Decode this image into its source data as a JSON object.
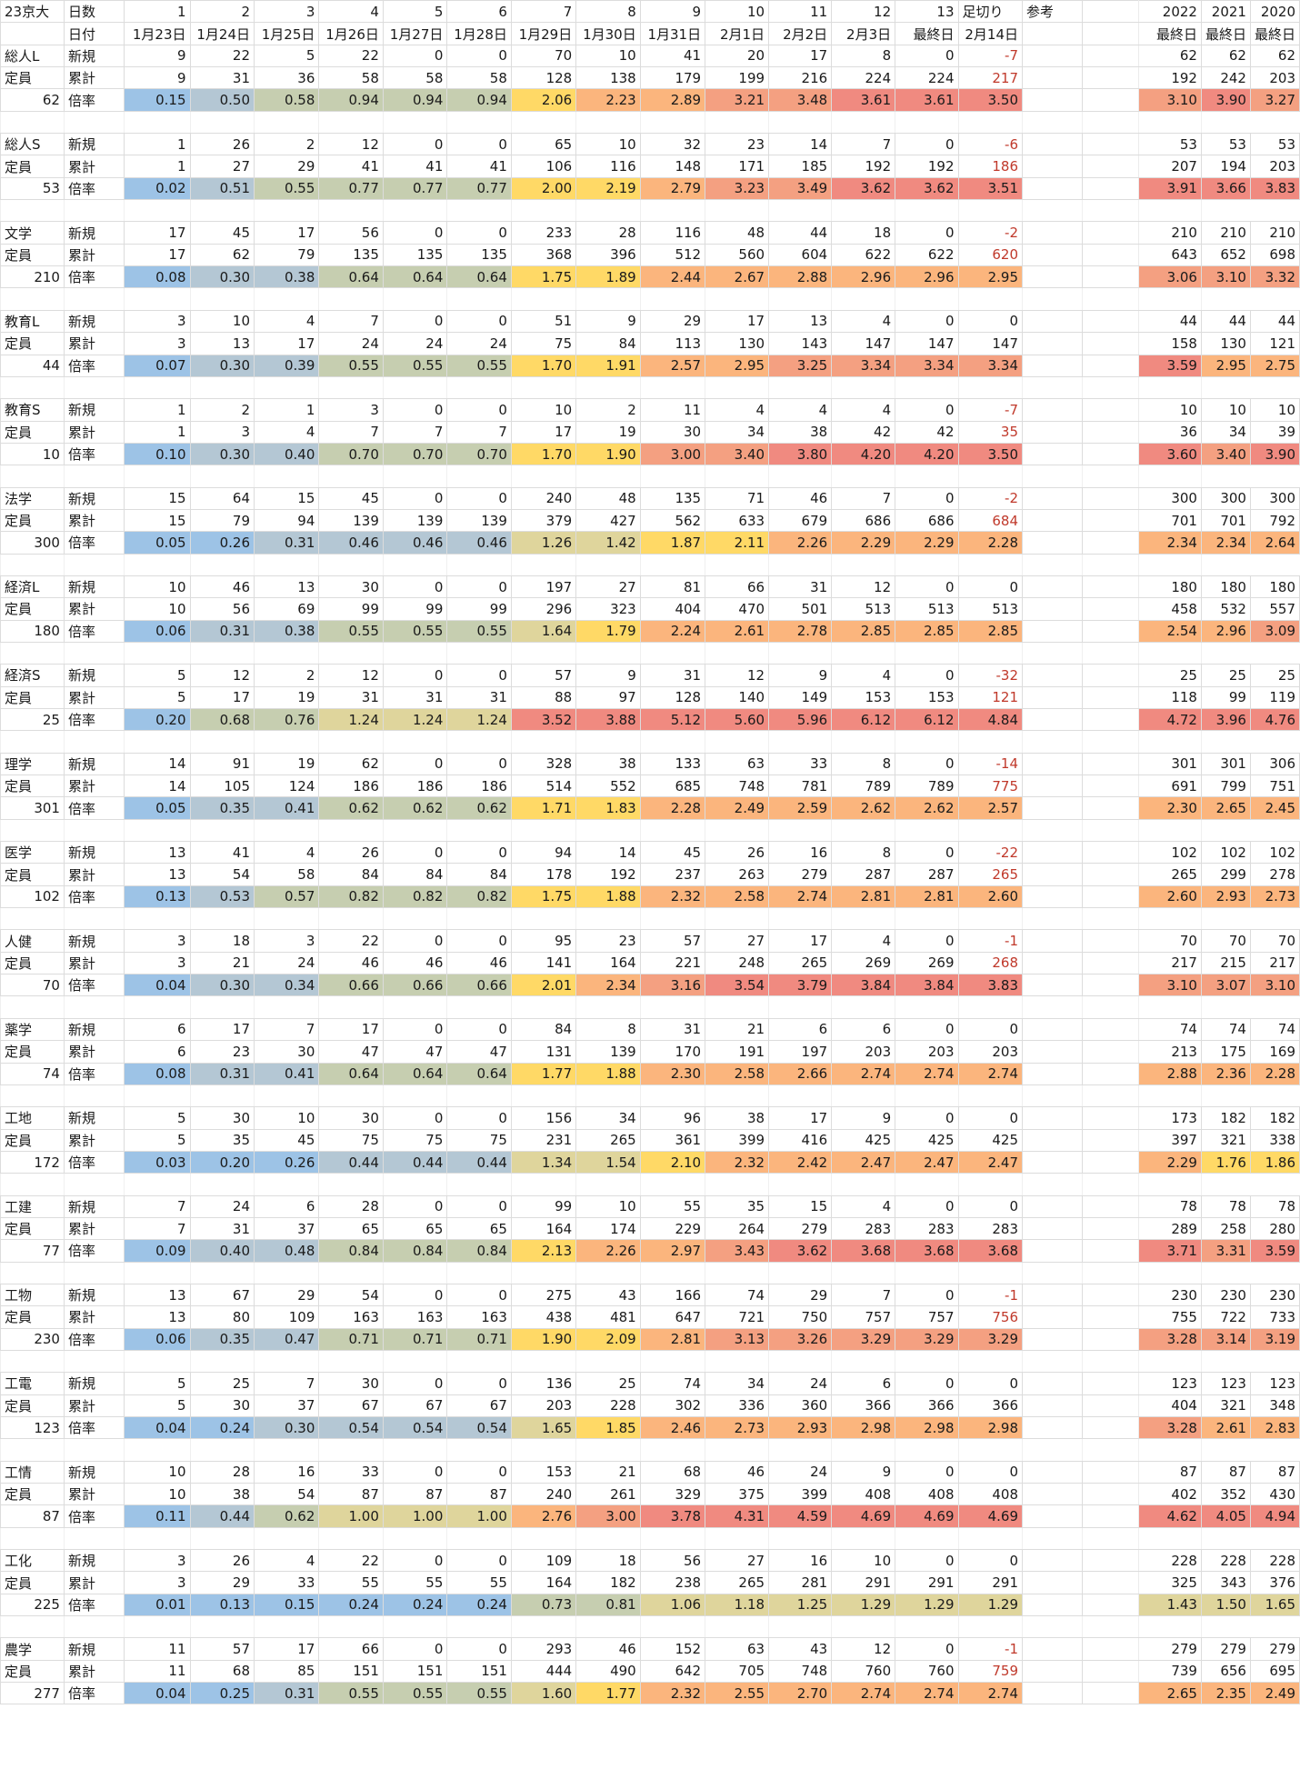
{
  "header": {
    "row1": {
      "title": "23京大",
      "label": "日数",
      "days": [
        "1",
        "2",
        "3",
        "4",
        "5",
        "6",
        "7",
        "8",
        "9",
        "10",
        "11",
        "12",
        "13"
      ],
      "cutoff": "足切り",
      "ref": "参考",
      "years": [
        "2022",
        "2021",
        "2020"
      ]
    },
    "row2": {
      "label": "日付",
      "dates": [
        "1月23日",
        "1月24日",
        "1月25日",
        "1月26日",
        "1月27日",
        "1月28日",
        "1月29日",
        "1月30日",
        "1月31日",
        "2月1日",
        "2月2日",
        "2月3日",
        "最終日"
      ],
      "cutoff_date": "2月14日",
      "years": [
        "最終日",
        "最終日",
        "最終日"
      ]
    }
  },
  "labels": {
    "new": "新規",
    "cumulative": "累計",
    "ratio": "倍率",
    "capacity": "定員"
  },
  "colors": {
    "blue": "#9dc3e6",
    "gray_blue": "#b4c7d4",
    "green_gray": "#c6ceb0",
    "beige": "#dfd59c",
    "yellow": "#ffd966",
    "orange": "#fbb57d",
    "salmon": "#f4a081",
    "red": "#f08a80",
    "negative_text": "#c0392b"
  },
  "groups": [
    {
      "name": "総人L",
      "capacity": "62",
      "new": [
        "9",
        "22",
        "5",
        "22",
        "0",
        "0",
        "70",
        "10",
        "41",
        "20",
        "17",
        "8",
        "0",
        "-7"
      ],
      "cum": [
        "9",
        "31",
        "36",
        "58",
        "58",
        "58",
        "128",
        "138",
        "179",
        "199",
        "216",
        "224",
        "224",
        "217"
      ],
      "ratio": [
        "0.15",
        "0.50",
        "0.58",
        "0.94",
        "0.94",
        "0.94",
        "2.06",
        "2.23",
        "2.89",
        "3.21",
        "3.48",
        "3.61",
        "3.61",
        "3.50"
      ],
      "ref_new": [
        "62",
        "62",
        "62"
      ],
      "ref_cum": [
        "192",
        "242",
        "203"
      ],
      "ref_ratio": [
        "3.10",
        "3.90",
        "3.27"
      ]
    },
    {
      "name": "総人S",
      "capacity": "53",
      "new": [
        "1",
        "26",
        "2",
        "12",
        "0",
        "0",
        "65",
        "10",
        "32",
        "23",
        "14",
        "7",
        "0",
        "-6"
      ],
      "cum": [
        "1",
        "27",
        "29",
        "41",
        "41",
        "41",
        "106",
        "116",
        "148",
        "171",
        "185",
        "192",
        "192",
        "186"
      ],
      "ratio": [
        "0.02",
        "0.51",
        "0.55",
        "0.77",
        "0.77",
        "0.77",
        "2.00",
        "2.19",
        "2.79",
        "3.23",
        "3.49",
        "3.62",
        "3.62",
        "3.51"
      ],
      "ref_new": [
        "53",
        "53",
        "53"
      ],
      "ref_cum": [
        "207",
        "194",
        "203"
      ],
      "ref_ratio": [
        "3.91",
        "3.66",
        "3.83"
      ]
    },
    {
      "name": "文学",
      "capacity": "210",
      "new": [
        "17",
        "45",
        "17",
        "56",
        "0",
        "0",
        "233",
        "28",
        "116",
        "48",
        "44",
        "18",
        "0",
        "-2"
      ],
      "cum": [
        "17",
        "62",
        "79",
        "135",
        "135",
        "135",
        "368",
        "396",
        "512",
        "560",
        "604",
        "622",
        "622",
        "620"
      ],
      "ratio": [
        "0.08",
        "0.30",
        "0.38",
        "0.64",
        "0.64",
        "0.64",
        "1.75",
        "1.89",
        "2.44",
        "2.67",
        "2.88",
        "2.96",
        "2.96",
        "2.95"
      ],
      "ref_new": [
        "210",
        "210",
        "210"
      ],
      "ref_cum": [
        "643",
        "652",
        "698"
      ],
      "ref_ratio": [
        "3.06",
        "3.10",
        "3.32"
      ]
    },
    {
      "name": "教育L",
      "capacity": "44",
      "new": [
        "3",
        "10",
        "4",
        "7",
        "0",
        "0",
        "51",
        "9",
        "29",
        "17",
        "13",
        "4",
        "0",
        "0"
      ],
      "cum": [
        "3",
        "13",
        "17",
        "24",
        "24",
        "24",
        "75",
        "84",
        "113",
        "130",
        "143",
        "147",
        "147",
        "147"
      ],
      "ratio": [
        "0.07",
        "0.30",
        "0.39",
        "0.55",
        "0.55",
        "0.55",
        "1.70",
        "1.91",
        "2.57",
        "2.95",
        "3.25",
        "3.34",
        "3.34",
        "3.34"
      ],
      "ref_new": [
        "44",
        "44",
        "44"
      ],
      "ref_cum": [
        "158",
        "130",
        "121"
      ],
      "ref_ratio": [
        "3.59",
        "2.95",
        "2.75"
      ]
    },
    {
      "name": "教育S",
      "capacity": "10",
      "new": [
        "1",
        "2",
        "1",
        "3",
        "0",
        "0",
        "10",
        "2",
        "11",
        "4",
        "4",
        "4",
        "0",
        "-7"
      ],
      "cum": [
        "1",
        "3",
        "4",
        "7",
        "7",
        "7",
        "17",
        "19",
        "30",
        "34",
        "38",
        "42",
        "42",
        "35"
      ],
      "ratio": [
        "0.10",
        "0.30",
        "0.40",
        "0.70",
        "0.70",
        "0.70",
        "1.70",
        "1.90",
        "3.00",
        "3.40",
        "3.80",
        "4.20",
        "4.20",
        "3.50"
      ],
      "ref_new": [
        "10",
        "10",
        "10"
      ],
      "ref_cum": [
        "36",
        "34",
        "39"
      ],
      "ref_ratio": [
        "3.60",
        "3.40",
        "3.90"
      ]
    },
    {
      "name": "法学",
      "capacity": "300",
      "new": [
        "15",
        "64",
        "15",
        "45",
        "0",
        "0",
        "240",
        "48",
        "135",
        "71",
        "46",
        "7",
        "0",
        "-2"
      ],
      "cum": [
        "15",
        "79",
        "94",
        "139",
        "139",
        "139",
        "379",
        "427",
        "562",
        "633",
        "679",
        "686",
        "686",
        "684"
      ],
      "ratio": [
        "0.05",
        "0.26",
        "0.31",
        "0.46",
        "0.46",
        "0.46",
        "1.26",
        "1.42",
        "1.87",
        "2.11",
        "2.26",
        "2.29",
        "2.29",
        "2.28"
      ],
      "ref_new": [
        "300",
        "300",
        "300"
      ],
      "ref_cum": [
        "701",
        "701",
        "792"
      ],
      "ref_ratio": [
        "2.34",
        "2.34",
        "2.64"
      ]
    },
    {
      "name": "経済L",
      "capacity": "180",
      "new": [
        "10",
        "46",
        "13",
        "30",
        "0",
        "0",
        "197",
        "27",
        "81",
        "66",
        "31",
        "12",
        "0",
        "0"
      ],
      "cum": [
        "10",
        "56",
        "69",
        "99",
        "99",
        "99",
        "296",
        "323",
        "404",
        "470",
        "501",
        "513",
        "513",
        "513"
      ],
      "ratio": [
        "0.06",
        "0.31",
        "0.38",
        "0.55",
        "0.55",
        "0.55",
        "1.64",
        "1.79",
        "2.24",
        "2.61",
        "2.78",
        "2.85",
        "2.85",
        "2.85"
      ],
      "ref_new": [
        "180",
        "180",
        "180"
      ],
      "ref_cum": [
        "458",
        "532",
        "557"
      ],
      "ref_ratio": [
        "2.54",
        "2.96",
        "3.09"
      ]
    },
    {
      "name": "経済S",
      "capacity": "25",
      "new": [
        "5",
        "12",
        "2",
        "12",
        "0",
        "0",
        "57",
        "9",
        "31",
        "12",
        "9",
        "4",
        "0",
        "-32"
      ],
      "cum": [
        "5",
        "17",
        "19",
        "31",
        "31",
        "31",
        "88",
        "97",
        "128",
        "140",
        "149",
        "153",
        "153",
        "121"
      ],
      "ratio": [
        "0.20",
        "0.68",
        "0.76",
        "1.24",
        "1.24",
        "1.24",
        "3.52",
        "3.88",
        "5.12",
        "5.60",
        "5.96",
        "6.12",
        "6.12",
        "4.84"
      ],
      "ref_new": [
        "25",
        "25",
        "25"
      ],
      "ref_cum": [
        "118",
        "99",
        "119"
      ],
      "ref_ratio": [
        "4.72",
        "3.96",
        "4.76"
      ]
    },
    {
      "name": "理学",
      "capacity": "301",
      "new": [
        "14",
        "91",
        "19",
        "62",
        "0",
        "0",
        "328",
        "38",
        "133",
        "63",
        "33",
        "8",
        "0",
        "-14"
      ],
      "cum": [
        "14",
        "105",
        "124",
        "186",
        "186",
        "186",
        "514",
        "552",
        "685",
        "748",
        "781",
        "789",
        "789",
        "775"
      ],
      "ratio": [
        "0.05",
        "0.35",
        "0.41",
        "0.62",
        "0.62",
        "0.62",
        "1.71",
        "1.83",
        "2.28",
        "2.49",
        "2.59",
        "2.62",
        "2.62",
        "2.57"
      ],
      "ref_new": [
        "301",
        "301",
        "306"
      ],
      "ref_cum": [
        "691",
        "799",
        "751"
      ],
      "ref_ratio": [
        "2.30",
        "2.65",
        "2.45"
      ]
    },
    {
      "name": "医学",
      "capacity": "102",
      "new": [
        "13",
        "41",
        "4",
        "26",
        "0",
        "0",
        "94",
        "14",
        "45",
        "26",
        "16",
        "8",
        "0",
        "-22"
      ],
      "cum": [
        "13",
        "54",
        "58",
        "84",
        "84",
        "84",
        "178",
        "192",
        "237",
        "263",
        "279",
        "287",
        "287",
        "265"
      ],
      "ratio": [
        "0.13",
        "0.53",
        "0.57",
        "0.82",
        "0.82",
        "0.82",
        "1.75",
        "1.88",
        "2.32",
        "2.58",
        "2.74",
        "2.81",
        "2.81",
        "2.60"
      ],
      "ref_new": [
        "102",
        "102",
        "102"
      ],
      "ref_cum": [
        "265",
        "299",
        "278"
      ],
      "ref_ratio": [
        "2.60",
        "2.93",
        "2.73"
      ]
    },
    {
      "name": "人健",
      "capacity": "70",
      "new": [
        "3",
        "18",
        "3",
        "22",
        "0",
        "0",
        "95",
        "23",
        "57",
        "27",
        "17",
        "4",
        "0",
        "-1"
      ],
      "cum": [
        "3",
        "21",
        "24",
        "46",
        "46",
        "46",
        "141",
        "164",
        "221",
        "248",
        "265",
        "269",
        "269",
        "268"
      ],
      "ratio": [
        "0.04",
        "0.30",
        "0.34",
        "0.66",
        "0.66",
        "0.66",
        "2.01",
        "2.34",
        "3.16",
        "3.54",
        "3.79",
        "3.84",
        "3.84",
        "3.83"
      ],
      "ref_new": [
        "70",
        "70",
        "70"
      ],
      "ref_cum": [
        "217",
        "215",
        "217"
      ],
      "ref_ratio": [
        "3.10",
        "3.07",
        "3.10"
      ]
    },
    {
      "name": "薬学",
      "capacity": "74",
      "new": [
        "6",
        "17",
        "7",
        "17",
        "0",
        "0",
        "84",
        "8",
        "31",
        "21",
        "6",
        "6",
        "0",
        "0"
      ],
      "cum": [
        "6",
        "23",
        "30",
        "47",
        "47",
        "47",
        "131",
        "139",
        "170",
        "191",
        "197",
        "203",
        "203",
        "203"
      ],
      "ratio": [
        "0.08",
        "0.31",
        "0.41",
        "0.64",
        "0.64",
        "0.64",
        "1.77",
        "1.88",
        "2.30",
        "2.58",
        "2.66",
        "2.74",
        "2.74",
        "2.74"
      ],
      "ref_new": [
        "74",
        "74",
        "74"
      ],
      "ref_cum": [
        "213",
        "175",
        "169"
      ],
      "ref_ratio": [
        "2.88",
        "2.36",
        "2.28"
      ]
    },
    {
      "name": "工地",
      "capacity": "172",
      "new": [
        "5",
        "30",
        "10",
        "30",
        "0",
        "0",
        "156",
        "34",
        "96",
        "38",
        "17",
        "9",
        "0",
        "0"
      ],
      "cum": [
        "5",
        "35",
        "45",
        "75",
        "75",
        "75",
        "231",
        "265",
        "361",
        "399",
        "416",
        "425",
        "425",
        "425"
      ],
      "ratio": [
        "0.03",
        "0.20",
        "0.26",
        "0.44",
        "0.44",
        "0.44",
        "1.34",
        "1.54",
        "2.10",
        "2.32",
        "2.42",
        "2.47",
        "2.47",
        "2.47"
      ],
      "ref_new": [
        "173",
        "182",
        "182"
      ],
      "ref_cum": [
        "397",
        "321",
        "338"
      ],
      "ref_ratio": [
        "2.29",
        "1.76",
        "1.86"
      ]
    },
    {
      "name": "工建",
      "capacity": "77",
      "new": [
        "7",
        "24",
        "6",
        "28",
        "0",
        "0",
        "99",
        "10",
        "55",
        "35",
        "15",
        "4",
        "0",
        "0"
      ],
      "cum": [
        "7",
        "31",
        "37",
        "65",
        "65",
        "65",
        "164",
        "174",
        "229",
        "264",
        "279",
        "283",
        "283",
        "283"
      ],
      "ratio": [
        "0.09",
        "0.40",
        "0.48",
        "0.84",
        "0.84",
        "0.84",
        "2.13",
        "2.26",
        "2.97",
        "3.43",
        "3.62",
        "3.68",
        "3.68",
        "3.68"
      ],
      "ref_new": [
        "78",
        "78",
        "78"
      ],
      "ref_cum": [
        "289",
        "258",
        "280"
      ],
      "ref_ratio": [
        "3.71",
        "3.31",
        "3.59"
      ]
    },
    {
      "name": "工物",
      "capacity": "230",
      "new": [
        "13",
        "67",
        "29",
        "54",
        "0",
        "0",
        "275",
        "43",
        "166",
        "74",
        "29",
        "7",
        "0",
        "-1"
      ],
      "cum": [
        "13",
        "80",
        "109",
        "163",
        "163",
        "163",
        "438",
        "481",
        "647",
        "721",
        "750",
        "757",
        "757",
        "756"
      ],
      "ratio": [
        "0.06",
        "0.35",
        "0.47",
        "0.71",
        "0.71",
        "0.71",
        "1.90",
        "2.09",
        "2.81",
        "3.13",
        "3.26",
        "3.29",
        "3.29",
        "3.29"
      ],
      "ref_new": [
        "230",
        "230",
        "230"
      ],
      "ref_cum": [
        "755",
        "722",
        "733"
      ],
      "ref_ratio": [
        "3.28",
        "3.14",
        "3.19"
      ]
    },
    {
      "name": "工電",
      "capacity": "123",
      "new": [
        "5",
        "25",
        "7",
        "30",
        "0",
        "0",
        "136",
        "25",
        "74",
        "34",
        "24",
        "6",
        "0",
        "0"
      ],
      "cum": [
        "5",
        "30",
        "37",
        "67",
        "67",
        "67",
        "203",
        "228",
        "302",
        "336",
        "360",
        "366",
        "366",
        "366"
      ],
      "ratio": [
        "0.04",
        "0.24",
        "0.30",
        "0.54",
        "0.54",
        "0.54",
        "1.65",
        "1.85",
        "2.46",
        "2.73",
        "2.93",
        "2.98",
        "2.98",
        "2.98"
      ],
      "ref_new": [
        "123",
        "123",
        "123"
      ],
      "ref_cum": [
        "404",
        "321",
        "348"
      ],
      "ref_ratio": [
        "3.28",
        "2.61",
        "2.83"
      ]
    },
    {
      "name": "工情",
      "capacity": "87",
      "new": [
        "10",
        "28",
        "16",
        "33",
        "0",
        "0",
        "153",
        "21",
        "68",
        "46",
        "24",
        "9",
        "0",
        "0"
      ],
      "cum": [
        "10",
        "38",
        "54",
        "87",
        "87",
        "87",
        "240",
        "261",
        "329",
        "375",
        "399",
        "408",
        "408",
        "408"
      ],
      "ratio": [
        "0.11",
        "0.44",
        "0.62",
        "1.00",
        "1.00",
        "1.00",
        "2.76",
        "3.00",
        "3.78",
        "4.31",
        "4.59",
        "4.69",
        "4.69",
        "4.69"
      ],
      "ref_new": [
        "87",
        "87",
        "87"
      ],
      "ref_cum": [
        "402",
        "352",
        "430"
      ],
      "ref_ratio": [
        "4.62",
        "4.05",
        "4.94"
      ]
    },
    {
      "name": "工化",
      "capacity": "225",
      "new": [
        "3",
        "26",
        "4",
        "22",
        "0",
        "0",
        "109",
        "18",
        "56",
        "27",
        "16",
        "10",
        "0",
        "0"
      ],
      "cum": [
        "3",
        "29",
        "33",
        "55",
        "55",
        "55",
        "164",
        "182",
        "238",
        "265",
        "281",
        "291",
        "291",
        "291"
      ],
      "ratio": [
        "0.01",
        "0.13",
        "0.15",
        "0.24",
        "0.24",
        "0.24",
        "0.73",
        "0.81",
        "1.06",
        "1.18",
        "1.25",
        "1.29",
        "1.29",
        "1.29"
      ],
      "ref_new": [
        "228",
        "228",
        "228"
      ],
      "ref_cum": [
        "325",
        "343",
        "376"
      ],
      "ref_ratio": [
        "1.43",
        "1.50",
        "1.65"
      ]
    },
    {
      "name": "農学",
      "capacity": "277",
      "new": [
        "11",
        "57",
        "17",
        "66",
        "0",
        "0",
        "293",
        "46",
        "152",
        "63",
        "43",
        "12",
        "0",
        "-1"
      ],
      "cum": [
        "11",
        "68",
        "85",
        "151",
        "151",
        "151",
        "444",
        "490",
        "642",
        "705",
        "748",
        "760",
        "760",
        "759"
      ],
      "ratio": [
        "0.04",
        "0.25",
        "0.31",
        "0.55",
        "0.55",
        "0.55",
        "1.60",
        "1.77",
        "2.32",
        "2.55",
        "2.70",
        "2.74",
        "2.74",
        "2.74"
      ],
      "ref_new": [
        "279",
        "279",
        "279"
      ],
      "ref_cum": [
        "739",
        "656",
        "695"
      ],
      "ref_ratio": [
        "2.65",
        "2.35",
        "2.49"
      ]
    }
  ]
}
